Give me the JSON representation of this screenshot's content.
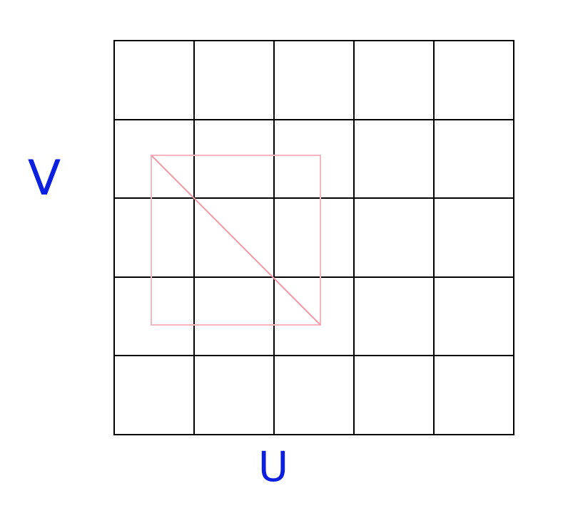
{
  "labels": {
    "v": "V",
    "u": "U"
  }
}
